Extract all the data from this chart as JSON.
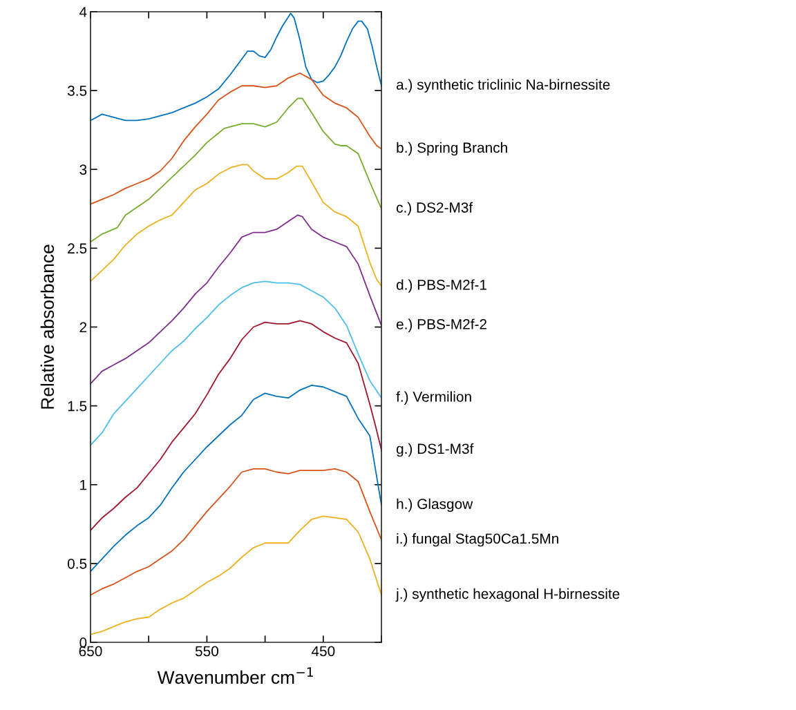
{
  "chart_data": {
    "type": "line",
    "xlabel": "Wavenumber cm$^{−1}$",
    "ylabel": "Relative absorbance",
    "xlim": [
      650,
      400
    ],
    "xticks": [
      650,
      {
        "value": 600,
        "label": null
      },
      550,
      {
        "value": 500,
        "label": null
      },
      450,
      {
        "value": 400,
        "label": null
      }
    ],
    "ylim": [
      0,
      4
    ],
    "yticks": [
      0,
      0.5,
      1,
      1.5,
      2,
      2.5,
      3,
      3.5,
      4
    ],
    "grid": false,
    "legend": false,
    "marker": "none",
    "line_style": "solid",
    "series": [
      {
        "name": "a.) synthetic triclinic Na-birnessite",
        "color": "#0072bd",
        "x": [
          650,
          640,
          630,
          620,
          610,
          600,
          590,
          580,
          570,
          560,
          550,
          540,
          530,
          520,
          515,
          510,
          505,
          500,
          495,
          490,
          485,
          478,
          475,
          470,
          465,
          460,
          455,
          450,
          445,
          440,
          435,
          430,
          425,
          420,
          417,
          412,
          408,
          404,
          400
        ],
        "values": [
          3.31,
          3.35,
          3.33,
          3.31,
          3.31,
          3.32,
          3.34,
          3.36,
          3.39,
          3.42,
          3.46,
          3.51,
          3.6,
          3.7,
          3.75,
          3.75,
          3.72,
          3.71,
          3.76,
          3.84,
          3.91,
          3.99,
          3.96,
          3.82,
          3.65,
          3.57,
          3.55,
          3.56,
          3.6,
          3.65,
          3.72,
          3.81,
          3.89,
          3.94,
          3.94,
          3.89,
          3.78,
          3.65,
          3.53
        ]
      },
      {
        "name": "b.) Spring Branch",
        "color": "#d95319",
        "x": [
          650,
          640,
          630,
          620,
          610,
          600,
          590,
          580,
          570,
          560,
          550,
          540,
          530,
          520,
          510,
          500,
          490,
          480,
          470,
          460,
          450,
          440,
          430,
          420,
          410,
          404,
          400
        ],
        "values": [
          2.78,
          2.81,
          2.84,
          2.88,
          2.91,
          2.94,
          2.99,
          3.07,
          3.18,
          3.27,
          3.35,
          3.44,
          3.49,
          3.53,
          3.53,
          3.52,
          3.53,
          3.58,
          3.61,
          3.57,
          3.47,
          3.42,
          3.39,
          3.33,
          3.21,
          3.15,
          3.13
        ]
      },
      {
        "name": "c.) DS2-M3f",
        "color": "#77ac30",
        "x": [
          650,
          640,
          627,
          620,
          610,
          600,
          590,
          580,
          570,
          560,
          550,
          540,
          535,
          530,
          520,
          510,
          500,
          490,
          480,
          472,
          468,
          460,
          450,
          440,
          435,
          430,
          420,
          410,
          400
        ],
        "values": [
          2.54,
          2.59,
          2.63,
          2.71,
          2.76,
          2.81,
          2.88,
          2.95,
          3.02,
          3.09,
          3.17,
          3.23,
          3.26,
          3.27,
          3.29,
          3.29,
          3.27,
          3.3,
          3.39,
          3.45,
          3.45,
          3.36,
          3.24,
          3.16,
          3.15,
          3.15,
          3.1,
          2.92,
          2.75
        ]
      },
      {
        "name": "d.) PBS-M2f-1",
        "color": "#edb120",
        "x": [
          650,
          640,
          630,
          620,
          610,
          600,
          590,
          580,
          570,
          560,
          550,
          540,
          530,
          520,
          515,
          510,
          500,
          490,
          480,
          473,
          468,
          460,
          450,
          440,
          430,
          420,
          410,
          404,
          400
        ],
        "values": [
          2.29,
          2.36,
          2.43,
          2.52,
          2.59,
          2.64,
          2.68,
          2.71,
          2.79,
          2.87,
          2.91,
          2.97,
          3.01,
          3.03,
          3.03,
          2.99,
          2.94,
          2.94,
          2.98,
          3.02,
          3.02,
          2.92,
          2.79,
          2.73,
          2.7,
          2.64,
          2.41,
          2.3,
          2.26
        ]
      },
      {
        "name": "e.) PBS-M2f-2",
        "color": "#7e2f8e",
        "x": [
          650,
          640,
          630,
          620,
          610,
          600,
          590,
          580,
          570,
          560,
          550,
          540,
          530,
          520,
          510,
          500,
          490,
          480,
          472,
          468,
          460,
          450,
          440,
          430,
          420,
          410,
          400
        ],
        "values": [
          1.64,
          1.72,
          1.76,
          1.8,
          1.85,
          1.9,
          1.97,
          2.04,
          2.12,
          2.21,
          2.28,
          2.38,
          2.47,
          2.57,
          2.6,
          2.6,
          2.62,
          2.67,
          2.71,
          2.7,
          2.62,
          2.57,
          2.54,
          2.51,
          2.4,
          2.2,
          2.01
        ]
      },
      {
        "name": "f.) Vermilion",
        "color": "#4dbeee",
        "x": [
          650,
          640,
          630,
          620,
          610,
          600,
          590,
          580,
          570,
          560,
          550,
          540,
          530,
          520,
          510,
          500,
          490,
          480,
          470,
          460,
          450,
          440,
          430,
          420,
          410,
          400
        ],
        "values": [
          1.25,
          1.33,
          1.45,
          1.53,
          1.61,
          1.69,
          1.77,
          1.85,
          1.91,
          1.99,
          2.06,
          2.14,
          2.2,
          2.25,
          2.28,
          2.29,
          2.28,
          2.28,
          2.27,
          2.23,
          2.19,
          2.12,
          2.01,
          1.83,
          1.66,
          1.55
        ]
      },
      {
        "name": "g.) DS1-M3f",
        "color": "#a2142f",
        "x": [
          650,
          640,
          630,
          620,
          610,
          600,
          590,
          580,
          570,
          560,
          550,
          540,
          530,
          520,
          510,
          500,
          490,
          480,
          470,
          460,
          450,
          440,
          430,
          420,
          410,
          405,
          400
        ],
        "values": [
          0.71,
          0.79,
          0.85,
          0.92,
          0.98,
          1.07,
          1.16,
          1.27,
          1.36,
          1.45,
          1.57,
          1.7,
          1.8,
          1.92,
          2.0,
          2.03,
          2.02,
          2.02,
          2.04,
          2.02,
          1.97,
          1.93,
          1.9,
          1.77,
          1.51,
          1.37,
          1.22
        ]
      },
      {
        "name": "h.) Glasgow",
        "color": "#0072bd",
        "x": [
          650,
          640,
          630,
          620,
          610,
          600,
          590,
          580,
          570,
          560,
          550,
          540,
          530,
          520,
          510,
          500,
          490,
          480,
          470,
          460,
          450,
          440,
          430,
          420,
          410,
          405,
          400
        ],
        "values": [
          0.45,
          0.53,
          0.61,
          0.68,
          0.74,
          0.79,
          0.87,
          0.98,
          1.08,
          1.16,
          1.24,
          1.31,
          1.38,
          1.44,
          1.54,
          1.58,
          1.56,
          1.55,
          1.6,
          1.63,
          1.62,
          1.59,
          1.56,
          1.42,
          1.31,
          1.09,
          0.87
        ]
      },
      {
        "name": "i.) fungal Stag50Ca1.5Mn",
        "color": "#d95319",
        "x": [
          650,
          640,
          630,
          620,
          610,
          600,
          590,
          580,
          570,
          560,
          550,
          540,
          530,
          520,
          510,
          500,
          490,
          480,
          470,
          460,
          450,
          440,
          430,
          420,
          410,
          400
        ],
        "values": [
          0.3,
          0.34,
          0.37,
          0.41,
          0.45,
          0.48,
          0.53,
          0.58,
          0.65,
          0.74,
          0.83,
          0.91,
          0.99,
          1.08,
          1.1,
          1.1,
          1.08,
          1.07,
          1.09,
          1.09,
          1.09,
          1.1,
          1.08,
          1.02,
          0.83,
          0.65
        ]
      },
      {
        "name": "j.) synthetic hexagonal H-birnessite",
        "color": "#edb120",
        "x": [
          650,
          640,
          630,
          620,
          610,
          600,
          590,
          580,
          570,
          560,
          550,
          540,
          530,
          520,
          510,
          500,
          490,
          480,
          470,
          460,
          450,
          440,
          430,
          420,
          410,
          400
        ],
        "values": [
          0.05,
          0.07,
          0.1,
          0.13,
          0.15,
          0.16,
          0.21,
          0.25,
          0.28,
          0.33,
          0.38,
          0.42,
          0.47,
          0.54,
          0.6,
          0.63,
          0.63,
          0.63,
          0.71,
          0.78,
          0.8,
          0.79,
          0.78,
          0.7,
          0.53,
          0.3
        ]
      }
    ]
  }
}
